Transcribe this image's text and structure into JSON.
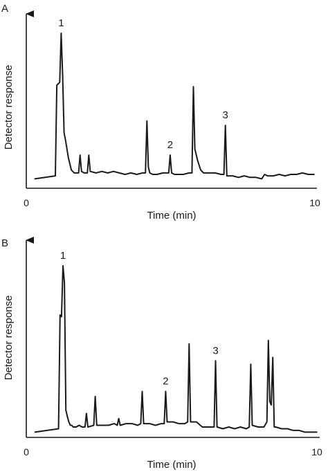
{
  "chart_data": [
    {
      "type": "line",
      "panel_label": "A",
      "xlabel": "Time (min)",
      "ylabel": "Detector response",
      "xlim": [
        0,
        10
      ],
      "x_ticks": [
        "0",
        "10"
      ],
      "grid": false,
      "baseline": 0.05,
      "series": [
        {
          "x": [
            0.3,
            1.0,
            1.05,
            1.1,
            1.15,
            1.2,
            1.25,
            1.3,
            1.35,
            1.4,
            1.45,
            1.5,
            1.55,
            1.6,
            1.65,
            1.7,
            1.8,
            1.85,
            1.9,
            2.0,
            2.1,
            2.15,
            2.2,
            2.4,
            2.6,
            2.8,
            3.0,
            3.2,
            3.4,
            3.6,
            3.8,
            4.0,
            4.1,
            4.15,
            4.2,
            4.25,
            4.35,
            4.5,
            4.7,
            4.8,
            4.9,
            4.95,
            5.0,
            5.1,
            5.2,
            5.4,
            5.6,
            5.7,
            5.75,
            5.8,
            5.9,
            6.0,
            6.1,
            6.3,
            6.5,
            6.7,
            6.8,
            6.85,
            6.9,
            7.1,
            7.3,
            7.5,
            7.7,
            7.9,
            8.1,
            8.2,
            8.3,
            8.5,
            8.7,
            8.9,
            9.1,
            9.3,
            9.5,
            9.7,
            9.9
          ],
          "y": [
            0.02,
            0.04,
            0.65,
            0.66,
            0.67,
            1.0,
            0.72,
            0.33,
            0.28,
            0.22,
            0.16,
            0.12,
            0.08,
            0.07,
            0.06,
            0.06,
            0.06,
            0.18,
            0.07,
            0.06,
            0.06,
            0.18,
            0.07,
            0.06,
            0.07,
            0.06,
            0.07,
            0.06,
            0.05,
            0.06,
            0.05,
            0.06,
            0.06,
            0.41,
            0.1,
            0.06,
            0.05,
            0.05,
            0.06,
            0.06,
            0.06,
            0.18,
            0.06,
            0.05,
            0.05,
            0.05,
            0.06,
            0.06,
            0.64,
            0.22,
            0.14,
            0.08,
            0.06,
            0.06,
            0.06,
            0.05,
            0.05,
            0.38,
            0.04,
            0.04,
            0.03,
            0.04,
            0.03,
            0.03,
            0.02,
            0.05,
            0.04,
            0.04,
            0.05,
            0.04,
            0.05,
            0.05,
            0.06,
            0.05,
            0.05
          ]
        }
      ],
      "peak_labels": [
        {
          "text": "1",
          "x": 1.2,
          "y": 1.0
        },
        {
          "text": "2",
          "x": 4.95,
          "y": 0.18
        },
        {
          "text": "3",
          "x": 6.85,
          "y": 0.38
        }
      ]
    },
    {
      "type": "line",
      "panel_label": "B",
      "xlabel": "Time (min)",
      "ylabel": "Detector response",
      "xlim": [
        0,
        10
      ],
      "x_ticks": [
        "0",
        "10"
      ],
      "grid": false,
      "baseline": 0.05,
      "series": [
        {
          "x": [
            0.3,
            1.1,
            1.15,
            1.2,
            1.25,
            1.3,
            1.35,
            1.4,
            1.45,
            1.5,
            1.55,
            1.6,
            1.7,
            1.8,
            1.9,
            2.0,
            2.05,
            2.1,
            2.3,
            2.35,
            2.4,
            2.6,
            2.8,
            3.0,
            3.1,
            3.15,
            3.2,
            3.4,
            3.6,
            3.8,
            3.9,
            3.95,
            4.0,
            4.2,
            4.4,
            4.6,
            4.7,
            4.75,
            4.8,
            5.0,
            5.2,
            5.4,
            5.5,
            5.55,
            5.6,
            5.8,
            6.0,
            6.2,
            6.4,
            6.45,
            6.5,
            6.7,
            6.9,
            7.1,
            7.3,
            7.5,
            7.6,
            7.65,
            7.7,
            7.9,
            8.1,
            8.2,
            8.25,
            8.3,
            8.35,
            8.4,
            8.45,
            8.5,
            8.7,
            8.9,
            9.1,
            9.3,
            9.5,
            9.7,
            9.9
          ],
          "y": [
            0.02,
            0.04,
            0.71,
            0.7,
            1.0,
            0.9,
            0.15,
            0.11,
            0.08,
            0.06,
            0.06,
            0.05,
            0.05,
            0.06,
            0.05,
            0.05,
            0.13,
            0.05,
            0.06,
            0.23,
            0.06,
            0.06,
            0.06,
            0.07,
            0.06,
            0.1,
            0.06,
            0.07,
            0.07,
            0.06,
            0.07,
            0.26,
            0.07,
            0.07,
            0.06,
            0.07,
            0.07,
            0.26,
            0.08,
            0.08,
            0.07,
            0.07,
            0.08,
            0.54,
            0.08,
            0.08,
            0.05,
            0.05,
            0.05,
            0.44,
            0.05,
            0.04,
            0.05,
            0.04,
            0.05,
            0.04,
            0.05,
            0.42,
            0.06,
            0.05,
            0.05,
            0.08,
            0.56,
            0.2,
            0.18,
            0.46,
            0.05,
            0.05,
            0.04,
            0.04,
            0.03,
            0.03,
            0.02,
            0.02,
            0.02
          ]
        }
      ],
      "peak_labels": [
        {
          "text": "1",
          "x": 1.25,
          "y": 1.0
        },
        {
          "text": "2",
          "x": 4.75,
          "y": 0.26
        },
        {
          "text": "3",
          "x": 6.45,
          "y": 0.44
        }
      ]
    }
  ]
}
